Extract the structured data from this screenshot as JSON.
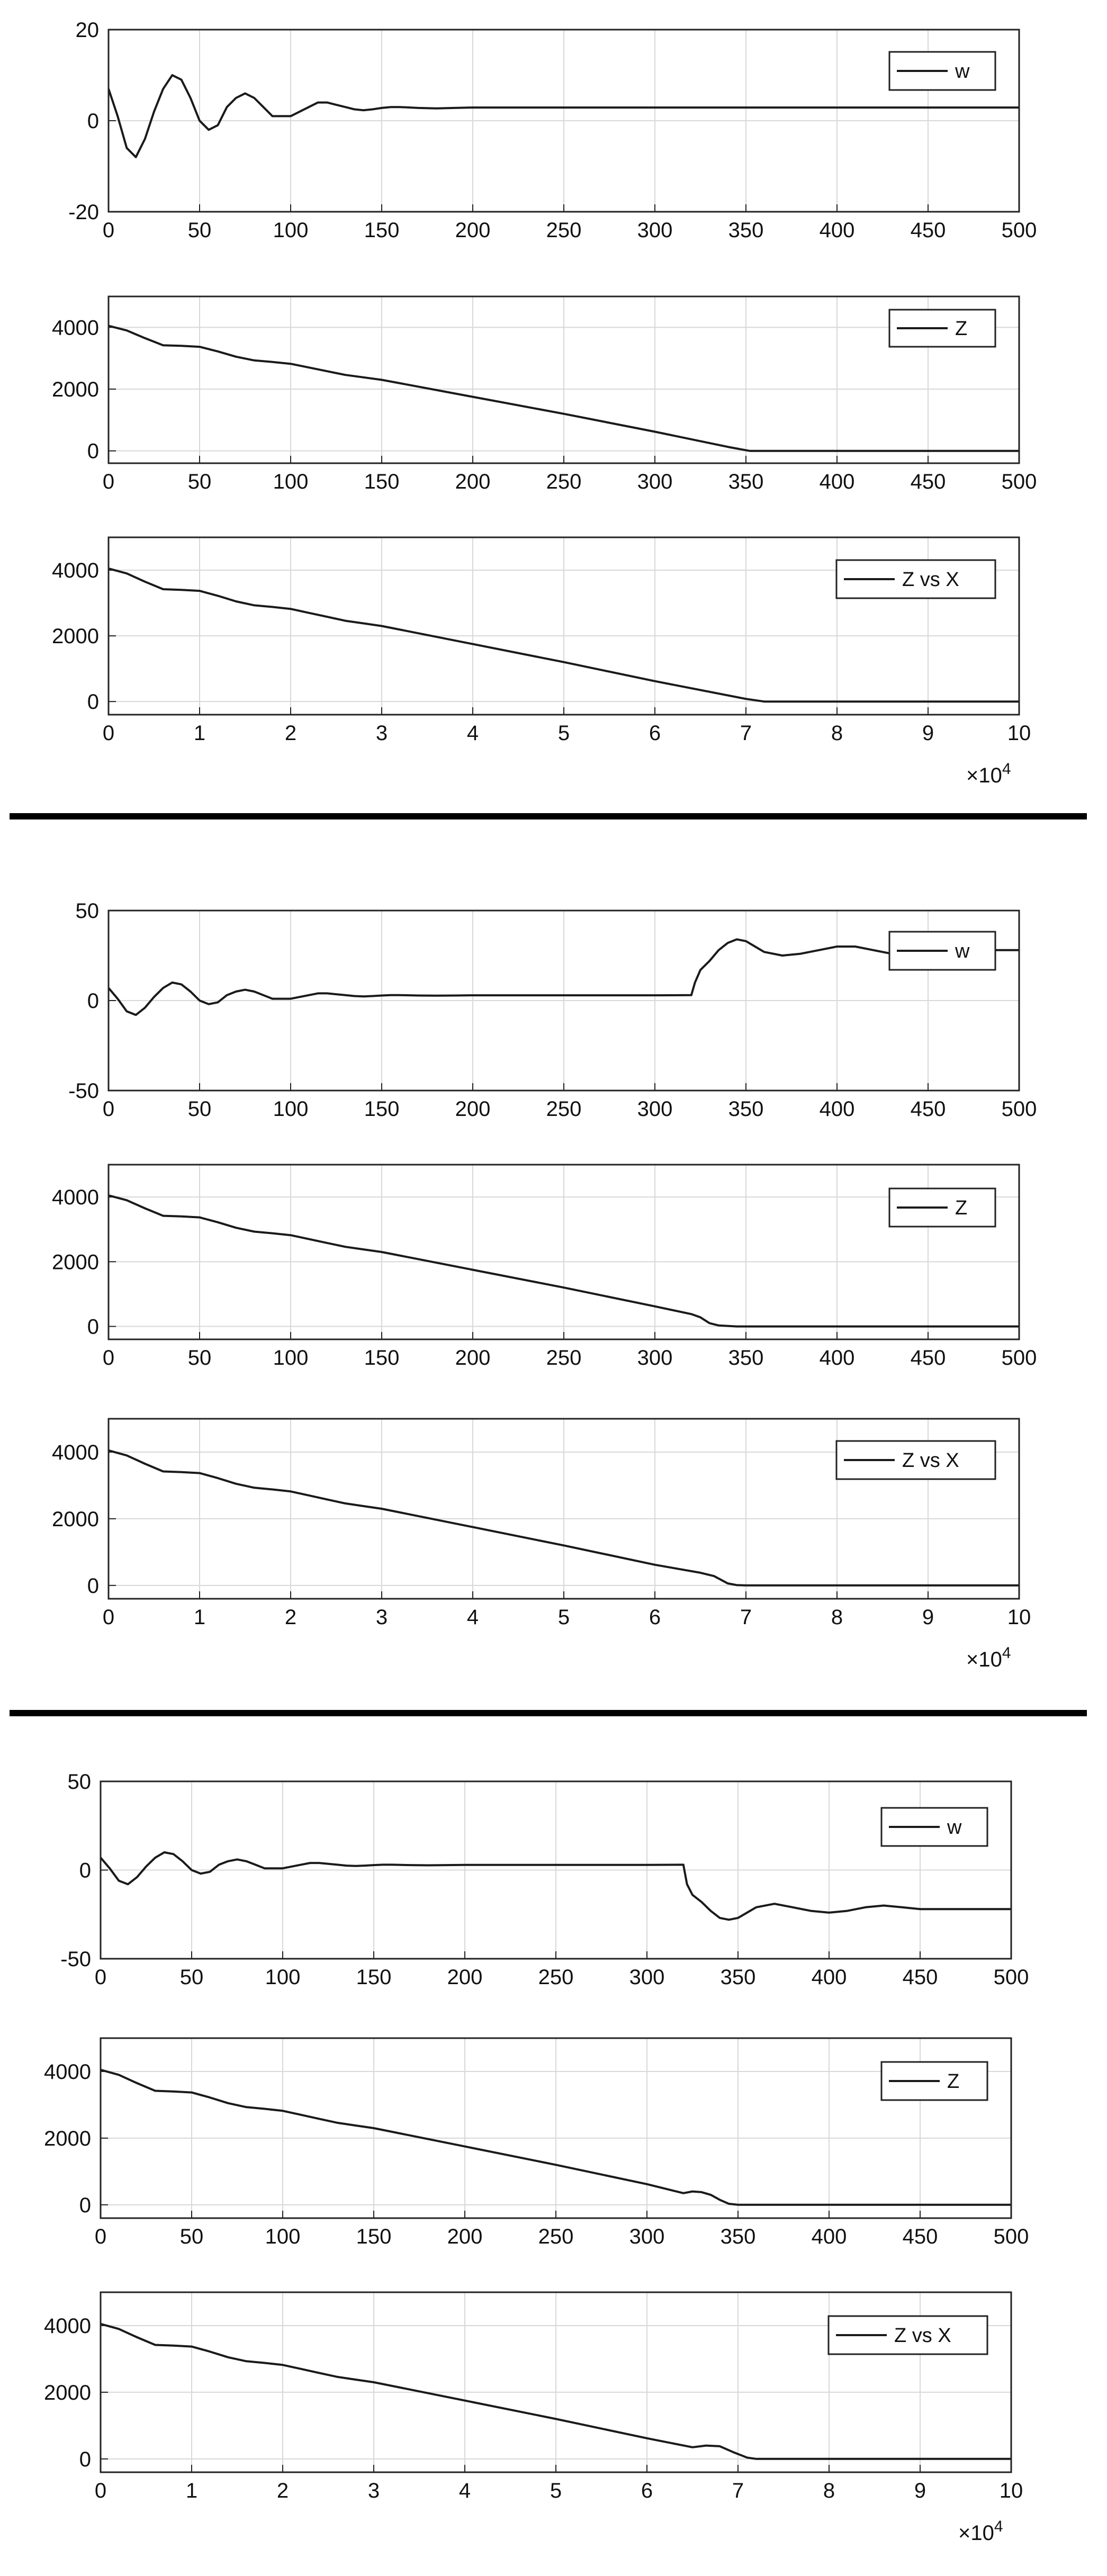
{
  "chart_data": [
    {
      "type": "line",
      "panel_group": 1,
      "xlim": [
        0,
        500
      ],
      "ylim": [
        -20,
        20
      ],
      "yticks": [
        -20,
        0,
        20
      ],
      "xticks": [
        0,
        50,
        100,
        150,
        200,
        250,
        300,
        350,
        400,
        450,
        500
      ],
      "x_multiplier": "",
      "grid": true,
      "legend": "top-right",
      "series": [
        {
          "name": "w",
          "x": [
            0,
            5,
            10,
            15,
            20,
            25,
            30,
            35,
            40,
            45,
            50,
            55,
            60,
            65,
            70,
            75,
            80,
            85,
            90,
            95,
            100,
            105,
            110,
            115,
            120,
            125,
            130,
            135,
            140,
            145,
            150,
            155,
            160,
            170,
            180,
            190,
            200,
            210,
            220,
            230,
            240,
            250,
            270,
            300,
            350,
            400,
            450,
            500
          ],
          "y": [
            7,
            1,
            -6,
            -8,
            -4,
            2,
            7,
            10,
            9,
            5,
            0,
            -2,
            -1,
            3,
            5,
            6,
            5,
            3,
            1,
            1,
            1,
            2,
            3,
            4,
            4,
            3.5,
            3,
            2.5,
            2.3,
            2.5,
            2.8,
            3,
            3,
            2.8,
            2.7,
            2.8,
            2.9,
            2.9,
            2.9,
            2.9,
            2.9,
            2.9,
            2.9,
            2.9,
            2.9,
            2.9,
            2.9,
            2.9
          ]
        }
      ]
    },
    {
      "type": "line",
      "panel_group": 1,
      "xlim": [
        0,
        500
      ],
      "ylim": [
        -400,
        5000
      ],
      "yticks": [
        0,
        2000,
        4000
      ],
      "xticks": [
        0,
        50,
        100,
        150,
        200,
        250,
        300,
        350,
        400,
        450,
        500
      ],
      "x_multiplier": "",
      "grid": true,
      "legend": "top-right",
      "series": [
        {
          "name": "Z",
          "x": [
            0,
            10,
            20,
            30,
            40,
            50,
            60,
            70,
            80,
            90,
            100,
            110,
            120,
            130,
            140,
            150,
            200,
            250,
            300,
            340,
            352,
            360,
            400,
            450,
            500
          ],
          "y": [
            4050,
            3900,
            3650,
            3420,
            3400,
            3370,
            3220,
            3050,
            2930,
            2880,
            2820,
            2700,
            2580,
            2460,
            2380,
            2300,
            1750,
            1200,
            620,
            130,
            0,
            0,
            0,
            0,
            0
          ]
        }
      ]
    },
    {
      "type": "line",
      "panel_group": 1,
      "xlim": [
        0,
        100000
      ],
      "ylim": [
        -400,
        5000
      ],
      "yticks": [
        0,
        2000,
        4000
      ],
      "xticks": [
        0,
        1,
        2,
        3,
        4,
        5,
        6,
        7,
        8,
        9,
        10
      ],
      "x_multiplier": "×10^4",
      "grid": true,
      "legend": "top-right",
      "series": [
        {
          "name": "Z vs X",
          "x": [
            0,
            2000,
            4000,
            6000,
            8000,
            10000,
            12000,
            14000,
            16000,
            18000,
            20000,
            22000,
            24000,
            26000,
            28000,
            30000,
            40000,
            50000,
            60000,
            70000,
            72000,
            80000,
            90000,
            100000
          ],
          "y": [
            4050,
            3900,
            3650,
            3420,
            3400,
            3370,
            3220,
            3050,
            2930,
            2880,
            2820,
            2700,
            2580,
            2460,
            2380,
            2300,
            1750,
            1200,
            620,
            80,
            0,
            0,
            0,
            0
          ]
        }
      ]
    },
    {
      "type": "line",
      "panel_group": 2,
      "xlim": [
        0,
        500
      ],
      "ylim": [
        -50,
        50
      ],
      "yticks": [
        -50,
        0,
        50
      ],
      "xticks": [
        0,
        50,
        100,
        150,
        200,
        250,
        300,
        350,
        400,
        450,
        500
      ],
      "x_multiplier": "",
      "grid": true,
      "legend": "top-right",
      "series": [
        {
          "name": "w",
          "x": [
            0,
            5,
            10,
            15,
            20,
            25,
            30,
            35,
            40,
            45,
            50,
            55,
            60,
            65,
            70,
            75,
            80,
            85,
            90,
            95,
            100,
            105,
            110,
            115,
            120,
            125,
            130,
            135,
            140,
            145,
            150,
            155,
            160,
            170,
            180,
            190,
            200,
            250,
            300,
            320,
            322,
            325,
            330,
            335,
            340,
            345,
            350,
            355,
            360,
            370,
            380,
            390,
            400,
            410,
            420,
            430,
            440,
            450,
            460,
            470,
            480,
            490,
            500
          ],
          "y": [
            7,
            1,
            -6,
            -8,
            -4,
            2,
            7,
            10,
            9,
            5,
            0,
            -2,
            -1,
            3,
            5,
            6,
            5,
            3,
            1,
            1,
            1,
            2,
            3,
            4,
            4,
            3.5,
            3,
            2.5,
            2.3,
            2.5,
            2.8,
            3,
            3,
            2.8,
            2.7,
            2.8,
            2.9,
            2.9,
            2.9,
            3,
            10,
            17,
            22,
            28,
            32,
            34,
            33,
            30,
            27,
            25,
            26,
            28,
            30,
            30,
            28,
            26,
            25,
            26,
            27,
            28,
            28,
            28,
            28
          ]
        }
      ]
    },
    {
      "type": "line",
      "panel_group": 2,
      "xlim": [
        0,
        500
      ],
      "ylim": [
        -400,
        5000
      ],
      "yticks": [
        0,
        2000,
        4000
      ],
      "xticks": [
        0,
        50,
        100,
        150,
        200,
        250,
        300,
        350,
        400,
        450,
        500
      ],
      "x_multiplier": "",
      "grid": true,
      "legend": "top-right",
      "series": [
        {
          "name": "Z",
          "x": [
            0,
            10,
            20,
            30,
            40,
            50,
            60,
            70,
            80,
            90,
            100,
            110,
            120,
            130,
            140,
            150,
            200,
            250,
            300,
            320,
            325,
            330,
            335,
            345,
            350,
            400,
            450,
            500
          ],
          "y": [
            4050,
            3900,
            3650,
            3420,
            3400,
            3370,
            3220,
            3050,
            2930,
            2880,
            2820,
            2700,
            2580,
            2460,
            2380,
            2300,
            1750,
            1200,
            620,
            380,
            280,
            100,
            30,
            0,
            0,
            0,
            0,
            0
          ]
        }
      ]
    },
    {
      "type": "line",
      "panel_group": 2,
      "xlim": [
        0,
        100000
      ],
      "ylim": [
        -400,
        5000
      ],
      "yticks": [
        0,
        2000,
        4000
      ],
      "xticks": [
        0,
        1,
        2,
        3,
        4,
        5,
        6,
        7,
        8,
        9,
        10
      ],
      "x_multiplier": "×10^4",
      "grid": true,
      "legend": "top-right",
      "series": [
        {
          "name": "Z vs X",
          "x": [
            0,
            2000,
            4000,
            6000,
            8000,
            10000,
            12000,
            14000,
            16000,
            18000,
            20000,
            22000,
            24000,
            26000,
            28000,
            30000,
            40000,
            50000,
            60000,
            65000,
            66500,
            68000,
            69000,
            70000,
            80000,
            90000,
            100000
          ],
          "y": [
            4050,
            3900,
            3650,
            3420,
            3400,
            3370,
            3220,
            3050,
            2930,
            2880,
            2820,
            2700,
            2580,
            2460,
            2380,
            2300,
            1750,
            1200,
            620,
            380,
            280,
            60,
            10,
            0,
            0,
            0,
            0
          ]
        }
      ]
    },
    {
      "type": "line",
      "panel_group": 3,
      "xlim": [
        0,
        500
      ],
      "ylim": [
        -50,
        50
      ],
      "yticks": [
        -50,
        0,
        50
      ],
      "xticks": [
        0,
        50,
        100,
        150,
        200,
        250,
        300,
        350,
        400,
        450,
        500
      ],
      "x_multiplier": "",
      "grid": true,
      "legend": "top-right",
      "series": [
        {
          "name": "w",
          "x": [
            0,
            5,
            10,
            15,
            20,
            25,
            30,
            35,
            40,
            45,
            50,
            55,
            60,
            65,
            70,
            75,
            80,
            85,
            90,
            95,
            100,
            105,
            110,
            115,
            120,
            125,
            130,
            135,
            140,
            145,
            150,
            155,
            160,
            170,
            180,
            190,
            200,
            250,
            300,
            320,
            322,
            325,
            330,
            335,
            340,
            345,
            350,
            355,
            360,
            370,
            380,
            390,
            400,
            410,
            420,
            430,
            440,
            450,
            460,
            470,
            480,
            490,
            500
          ],
          "y": [
            7,
            1,
            -6,
            -8,
            -4,
            2,
            7,
            10,
            9,
            5,
            0,
            -2,
            -1,
            3,
            5,
            6,
            5,
            3,
            1,
            1,
            1,
            2,
            3,
            4,
            4,
            3.5,
            3,
            2.5,
            2.3,
            2.5,
            2.8,
            3,
            3,
            2.8,
            2.7,
            2.8,
            2.9,
            2.9,
            2.9,
            3,
            -8,
            -14,
            -18,
            -23,
            -27,
            -28,
            -27,
            -24,
            -21,
            -19,
            -21,
            -23,
            -24,
            -23,
            -21,
            -20,
            -21,
            -22,
            -22,
            -22,
            -22,
            -22,
            -22
          ]
        }
      ]
    },
    {
      "type": "line",
      "panel_group": 3,
      "xlim": [
        0,
        500
      ],
      "ylim": [
        -400,
        5000
      ],
      "yticks": [
        0,
        2000,
        4000
      ],
      "xticks": [
        0,
        50,
        100,
        150,
        200,
        250,
        300,
        350,
        400,
        450,
        500
      ],
      "x_multiplier": "",
      "grid": true,
      "legend": "top-right",
      "series": [
        {
          "name": "Z",
          "x": [
            0,
            10,
            20,
            30,
            40,
            50,
            60,
            70,
            80,
            90,
            100,
            110,
            120,
            130,
            140,
            150,
            200,
            250,
            300,
            320,
            325,
            330,
            335,
            340,
            345,
            350,
            360,
            400,
            450,
            500
          ],
          "y": [
            4050,
            3900,
            3650,
            3420,
            3400,
            3370,
            3220,
            3050,
            2930,
            2880,
            2820,
            2700,
            2580,
            2460,
            2380,
            2300,
            1750,
            1200,
            620,
            350,
            400,
            380,
            300,
            150,
            30,
            0,
            0,
            0,
            0,
            0
          ]
        }
      ]
    },
    {
      "type": "line",
      "panel_group": 3,
      "xlim": [
        0,
        100000
      ],
      "ylim": [
        -400,
        5000
      ],
      "yticks": [
        0,
        2000,
        4000
      ],
      "xticks": [
        0,
        1,
        2,
        3,
        4,
        5,
        6,
        7,
        8,
        9,
        10
      ],
      "x_multiplier": "×10^4",
      "grid": true,
      "legend": "top-right",
      "series": [
        {
          "name": "Z vs X",
          "x": [
            0,
            2000,
            4000,
            6000,
            8000,
            10000,
            12000,
            14000,
            16000,
            18000,
            20000,
            22000,
            24000,
            26000,
            28000,
            30000,
            40000,
            50000,
            60000,
            65000,
            66500,
            68000,
            69500,
            71000,
            72000,
            80000,
            90000,
            100000
          ],
          "y": [
            4050,
            3900,
            3650,
            3420,
            3400,
            3370,
            3220,
            3050,
            2930,
            2880,
            2820,
            2700,
            2580,
            2460,
            2380,
            2300,
            1750,
            1200,
            620,
            350,
            400,
            380,
            200,
            40,
            0,
            0,
            0,
            0
          ]
        }
      ]
    }
  ],
  "colors": {
    "line": "#1a1a1a",
    "grid": "#d8d8d8",
    "axis": "#222222",
    "divider": "#000000"
  }
}
